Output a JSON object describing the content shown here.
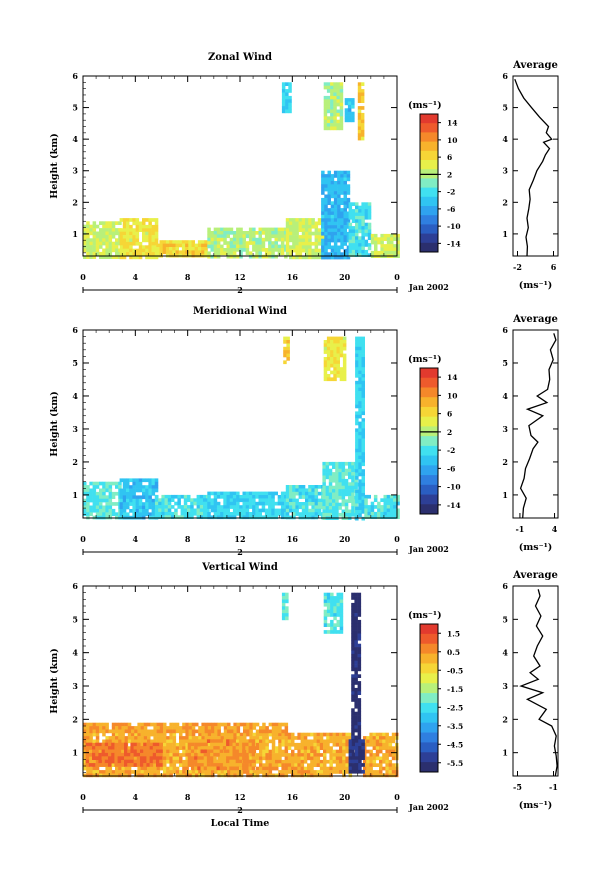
{
  "chart_data": [
    {
      "type": "heatmap",
      "title": "Zonal Wind",
      "ylabel": "Height (km)",
      "xlabel": "",
      "x_ticks": [
        "0",
        "4",
        "8",
        "12",
        "16",
        "20",
        "0"
      ],
      "xlim": [
        0,
        24
      ],
      "y_ticks": [
        "1",
        "2",
        "3",
        "4",
        "5",
        "6"
      ],
      "ylim": [
        0.3,
        6
      ],
      "date_axis": {
        "day": "2",
        "label": "Jan 2002"
      },
      "colorbar": {
        "unit": "(ms⁻¹)",
        "ticks": [
          "14",
          "10",
          "6",
          "2",
          "-2",
          "-6",
          "-10",
          "-14"
        ],
        "range": [
          -16,
          16
        ],
        "zero_line": 2
      },
      "profile": {
        "title": "Average",
        "xlabel": "(ms⁻¹)",
        "x_ticks": [
          "-2",
          "6"
        ],
        "xlim": [
          -3,
          7
        ],
        "y_ticks": [
          "1",
          "2",
          "3",
          "4",
          "5",
          "6"
        ],
        "heights": [
          0.3,
          0.6,
          0.9,
          1.2,
          1.5,
          1.8,
          2.1,
          2.4,
          2.7,
          3.0,
          3.3,
          3.5,
          3.7,
          3.9,
          4.0,
          4.2,
          4.4,
          4.7,
          5.0,
          5.3,
          5.6,
          5.9
        ],
        "values": [
          0.1,
          0.2,
          -0.1,
          0.4,
          0.1,
          0.5,
          0.8,
          0.6,
          1.5,
          2.3,
          3.6,
          4.2,
          5.1,
          3.8,
          5.6,
          4.4,
          4.9,
          2.9,
          1.1,
          -0.6,
          -1.8,
          -2.6
        ]
      },
      "regions": [
        {
          "t0": 0,
          "t1": 2.8,
          "h0": 0.3,
          "h1": 1.4,
          "v": 3
        },
        {
          "t0": 2.8,
          "t1": 5.6,
          "h0": 0.3,
          "h1": 1.5,
          "v": 5
        },
        {
          "t0": 5.6,
          "t1": 9.5,
          "h0": 0.3,
          "h1": 0.8,
          "v": 6
        },
        {
          "t0": 9.5,
          "t1": 15.5,
          "h0": 0.3,
          "h1": 1.2,
          "v": 2
        },
        {
          "t0": 15.5,
          "t1": 18.2,
          "h0": 0.3,
          "h1": 1.5,
          "v": 3
        },
        {
          "t0": 18.2,
          "t1": 20.3,
          "h0": 0.3,
          "h1": 3.0,
          "v": -5
        },
        {
          "t0": 20.3,
          "t1": 22.0,
          "h0": 0.3,
          "h1": 2.0,
          "v": -2
        },
        {
          "t0": 22.0,
          "t1": 24,
          "h0": 0.3,
          "h1": 1.0,
          "v": 3
        },
        {
          "t0": 15.2,
          "t1": 15.7,
          "h0": 4.9,
          "h1": 5.8,
          "v": -3
        },
        {
          "t0": 18.4,
          "t1": 19.8,
          "h0": 4.3,
          "h1": 5.8,
          "v": 2
        },
        {
          "t0": 20.0,
          "t1": 20.5,
          "h0": 4.6,
          "h1": 5.3,
          "v": -4
        },
        {
          "t0": 21.0,
          "t1": 21.4,
          "h0": 4.0,
          "h1": 5.8,
          "v": 7
        }
      ]
    },
    {
      "type": "heatmap",
      "title": "Meridional Wind",
      "ylabel": "Height (km)",
      "xlabel": "",
      "x_ticks": [
        "0",
        "4",
        "8",
        "12",
        "16",
        "20",
        "0"
      ],
      "xlim": [
        0,
        24
      ],
      "y_ticks": [
        "1",
        "2",
        "3",
        "4",
        "5",
        "6"
      ],
      "ylim": [
        0.3,
        6
      ],
      "date_axis": {
        "day": "2",
        "label": "Jan 2002"
      },
      "colorbar": {
        "unit": "(ms⁻¹)",
        "ticks": [
          "14",
          "10",
          "6",
          "2",
          "-2",
          "-6",
          "-10",
          "-14"
        ],
        "range": [
          -16,
          16
        ],
        "zero_line": 2
      },
      "profile": {
        "title": "Average",
        "xlabel": "(ms⁻¹)",
        "x_ticks": [
          "-1",
          "4"
        ],
        "xlim": [
          -2,
          4.5
        ],
        "y_ticks": [
          "1",
          "2",
          "3",
          "4",
          "5",
          "6"
        ],
        "heights": [
          0.3,
          0.6,
          0.9,
          1.2,
          1.5,
          1.8,
          2.1,
          2.4,
          2.6,
          2.8,
          3.1,
          3.4,
          3.6,
          3.8,
          4.0,
          4.2,
          4.5,
          4.8,
          5.1,
          5.4,
          5.7,
          5.9
        ],
        "values": [
          -0.6,
          -0.5,
          -0.1,
          -0.9,
          -0.4,
          -0.2,
          0.4,
          0.9,
          1.6,
          0.6,
          0.3,
          2.3,
          0.1,
          2.9,
          1.5,
          3.0,
          3.3,
          3.2,
          3.8,
          3.4,
          4.2,
          3.9
        ]
      },
      "regions": [
        {
          "t0": 0,
          "t1": 2.8,
          "h0": 0.3,
          "h1": 1.4,
          "v": -1
        },
        {
          "t0": 2.8,
          "t1": 5.5,
          "h0": 0.3,
          "h1": 1.5,
          "v": -4
        },
        {
          "t0": 5.5,
          "t1": 9.5,
          "h0": 0.3,
          "h1": 1.0,
          "v": -2
        },
        {
          "t0": 9.5,
          "t1": 15.5,
          "h0": 0.3,
          "h1": 1.1,
          "v": -3
        },
        {
          "t0": 15.5,
          "t1": 18.3,
          "h0": 0.3,
          "h1": 1.3,
          "v": -2
        },
        {
          "t0": 18.3,
          "t1": 20.8,
          "h0": 0.3,
          "h1": 2.0,
          "v": -1
        },
        {
          "t0": 20.8,
          "t1": 21.5,
          "h0": 0.3,
          "h1": 5.8,
          "v": -3
        },
        {
          "t0": 21.5,
          "t1": 24,
          "h0": 0.3,
          "h1": 1.0,
          "v": -2
        },
        {
          "t0": 15.3,
          "t1": 15.6,
          "h0": 5.0,
          "h1": 5.8,
          "v": 7
        },
        {
          "t0": 18.4,
          "t1": 19.9,
          "h0": 4.5,
          "h1": 5.8,
          "v": 5
        }
      ]
    },
    {
      "type": "heatmap",
      "title": "Vertical Wind",
      "ylabel": "Height (km)",
      "xlabel": "Local Time",
      "x_ticks": [
        "0",
        "4",
        "8",
        "12",
        "16",
        "20",
        "0"
      ],
      "xlim": [
        0,
        24
      ],
      "y_ticks": [
        "1",
        "2",
        "3",
        "4",
        "5",
        "6"
      ],
      "ylim": [
        0.3,
        6
      ],
      "date_axis": {
        "day": "2",
        "label": "Jan 2002"
      },
      "colorbar": {
        "unit": "(ms⁻¹)",
        "ticks": [
          "1.5",
          "0.5",
          "-0.5",
          "-1.5",
          "-2.5",
          "-3.5",
          "-4.5",
          "-5.5"
        ],
        "range": [
          -6,
          2
        ],
        "zero_line": null
      },
      "profile": {
        "title": "Average",
        "xlabel": "(ms⁻¹)",
        "x_ticks": [
          "-5",
          "-1"
        ],
        "xlim": [
          -5.5,
          -0.5
        ],
        "y_ticks": [
          "1",
          "2",
          "3",
          "4",
          "5",
          "6"
        ],
        "heights": [
          0.3,
          0.6,
          0.9,
          1.2,
          1.5,
          1.8,
          2.0,
          2.3,
          2.6,
          2.8,
          3.0,
          3.2,
          3.4,
          3.6,
          3.9,
          4.2,
          4.5,
          4.8,
          5.1,
          5.4,
          5.7,
          5.9
        ],
        "values": [
          -0.8,
          -0.6,
          -0.7,
          -0.9,
          -0.7,
          -1.2,
          -2.6,
          -1.8,
          -3.9,
          -2.2,
          -4.6,
          -2.7,
          -3.6,
          -2.5,
          -3.2,
          -2.8,
          -2.2,
          -2.9,
          -2.4,
          -3.0,
          -2.5,
          -2.7
        ]
      },
      "regions": [
        {
          "t0": 0,
          "t1": 20.4,
          "h0": 0.3,
          "h1": 1.6,
          "v": 0.2
        },
        {
          "t0": 21.4,
          "t1": 24,
          "h0": 0.3,
          "h1": 1.6,
          "v": 0.2
        },
        {
          "t0": 0.2,
          "t1": 6.0,
          "h0": 0.6,
          "h1": 1.3,
          "v": 0.9
        },
        {
          "t0": 8.0,
          "t1": 13.0,
          "h0": 0.5,
          "h1": 1.4,
          "v": 0.5
        },
        {
          "t0": 0,
          "t1": 15.5,
          "h0": 1.6,
          "h1": 1.9,
          "v": 0.4
        },
        {
          "t0": 15.2,
          "t1": 15.6,
          "h0": 5.0,
          "h1": 5.8,
          "v": -2.2
        },
        {
          "t0": 18.4,
          "t1": 19.8,
          "h0": 4.6,
          "h1": 5.8,
          "v": -2.4
        },
        {
          "t0": 20.5,
          "t1": 21.1,
          "h0": 0.4,
          "h1": 5.8,
          "v": -5.8
        },
        {
          "t0": 20.3,
          "t1": 21.3,
          "h0": 0.4,
          "h1": 1.4,
          "v": -5.6
        }
      ]
    }
  ]
}
